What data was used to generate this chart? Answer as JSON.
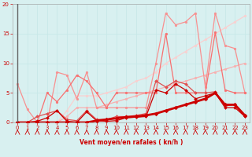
{
  "xlabel": "Vent moyen/en rafales ( kn/h )",
  "x": [
    0,
    1,
    2,
    3,
    4,
    5,
    6,
    7,
    8,
    9,
    10,
    11,
    12,
    13,
    14,
    15,
    16,
    17,
    18,
    19,
    20,
    21,
    22,
    23
  ],
  "series": [
    {
      "name": "thick_dark_red",
      "color": "#cc0000",
      "lw": 2.0,
      "marker": "D",
      "ms": 2.5,
      "values": [
        0,
        0,
        0,
        0,
        0,
        0,
        0,
        0,
        0.3,
        0.5,
        0.7,
        0.9,
        1.0,
        1.2,
        1.5,
        2.0,
        2.5,
        3.0,
        3.5,
        4.0,
        5.0,
        3.0,
        3.0,
        1.2
      ]
    },
    {
      "name": "dark_red_thin",
      "color": "#cc0000",
      "lw": 0.9,
      "marker": "D",
      "ms": 2.0,
      "values": [
        0,
        0,
        0.2,
        0.8,
        2.0,
        0.2,
        0.0,
        1.8,
        0.3,
        0.2,
        0.3,
        0.8,
        0.9,
        1.0,
        5.5,
        5.0,
        6.5,
        5.5,
        4.0,
        4.5,
        5.0,
        2.5,
        2.5,
        1.0
      ]
    },
    {
      "name": "medium_red",
      "color": "#e05050",
      "lw": 0.9,
      "marker": "D",
      "ms": 2.0,
      "values": [
        0,
        0,
        1.0,
        1.5,
        2.0,
        0.5,
        0.3,
        2.0,
        0.5,
        0.5,
        1.0,
        1.0,
        1.2,
        1.5,
        7.0,
        6.0,
        7.0,
        6.5,
        5.0,
        5.0,
        5.2,
        2.8,
        3.0,
        1.0
      ]
    },
    {
      "name": "light_pink_diagonal1",
      "color": "#f8b0b0",
      "lw": 0.9,
      "marker": "o",
      "ms": 2.0,
      "values": [
        0,
        0,
        0,
        0,
        0,
        1.0,
        2.5,
        2.5,
        2.5,
        3.0,
        3.5,
        4.0,
        4.5,
        5.0,
        5.5,
        6.0,
        6.5,
        7.0,
        7.5,
        8.0,
        8.5,
        9.0,
        9.5,
        10.0
      ]
    },
    {
      "name": "lightest_pink_diagonal2",
      "color": "#fad0d0",
      "lw": 0.9,
      "marker": "o",
      "ms": 2.0,
      "values": [
        0,
        0,
        0,
        0,
        0,
        2.0,
        4.5,
        4.5,
        4.5,
        5.0,
        5.5,
        6.0,
        7.0,
        7.5,
        8.5,
        10.0,
        11.0,
        12.0,
        13.0,
        14.0,
        15.0,
        16.0,
        17.0,
        18.0
      ]
    },
    {
      "name": "spiky_pink",
      "color": "#f89090",
      "lw": 0.9,
      "marker": "o",
      "ms": 2.0,
      "values": [
        6.5,
        2.2,
        0,
        0,
        8.5,
        8.0,
        4.0,
        8.5,
        2.5,
        2.5,
        2.5,
        2.5,
        2.5,
        2.5,
        10.0,
        18.5,
        16.5,
        17.0,
        18.5,
        6.0,
        18.5,
        13.0,
        12.5,
        5.0
      ]
    },
    {
      "name": "medium_spiky",
      "color": "#f87070",
      "lw": 0.9,
      "marker": "o",
      "ms": 2.0,
      "values": [
        0,
        0,
        0,
        5.0,
        3.5,
        5.5,
        8.0,
        7.0,
        5.0,
        2.5,
        5.0,
        5.0,
        5.0,
        5.0,
        5.0,
        15.0,
        5.0,
        5.0,
        5.0,
        5.0,
        15.2,
        5.5,
        5.0,
        5.0
      ]
    }
  ],
  "ylim": [
    0,
    20
  ],
  "xlim": [
    -0.5,
    23.5
  ],
  "yticks": [
    0,
    5,
    10,
    15,
    20
  ],
  "xticks": [
    0,
    1,
    2,
    3,
    4,
    5,
    6,
    7,
    8,
    9,
    10,
    11,
    12,
    13,
    14,
    15,
    16,
    17,
    18,
    19,
    20,
    21,
    22,
    23
  ],
  "bg_color": "#d8f0f0",
  "grid_color": "#c0e0e0",
  "label_color": "#cc0000",
  "tick_color": "#cc0000"
}
